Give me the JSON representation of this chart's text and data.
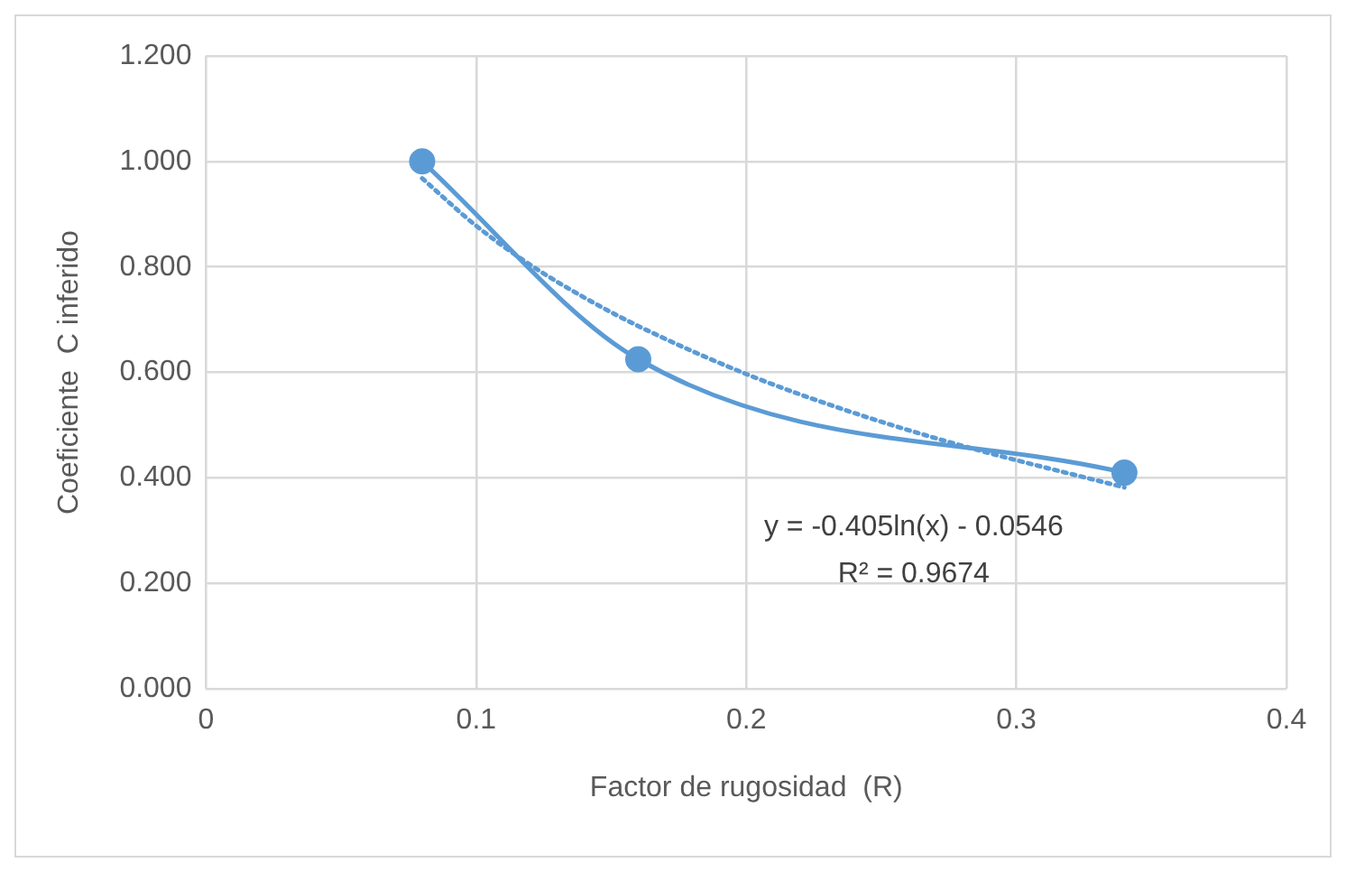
{
  "chart_data": {
    "type": "scatter",
    "xlabel": "Factor de rugosidad  (R)",
    "ylabel": "Coeficiente  C inferido",
    "xlim": [
      0,
      0.4
    ],
    "xticks": [
      0,
      0.1,
      0.2,
      0.3,
      0.4
    ],
    "ylim": [
      0,
      1.2
    ],
    "yticks": [
      {
        "value": 0,
        "label": "0.000"
      },
      {
        "value": 0.2,
        "label": "0.200"
      },
      {
        "value": 0.4,
        "label": "0.400"
      },
      {
        "value": 0.6,
        "label": "0.600"
      },
      {
        "value": 0.8,
        "label": "0.800"
      },
      {
        "value": 1,
        "label": "1.000"
      },
      {
        "value": 1.2,
        "label": "1.200"
      }
    ],
    "grid": true,
    "legend": false,
    "series": [
      {
        "type": "line",
        "color": "#5b9bd5",
        "marker": "circle",
        "line_style": "solid",
        "x": [
          0.08,
          0.16,
          0.34
        ],
        "values": [
          1.0,
          0.625,
          0.41
        ]
      },
      {
        "type": "line",
        "color": "#5b9bd5",
        "marker": "none",
        "line_style": "dotted",
        "x": [
          0.08,
          0.1,
          0.12,
          0.14,
          0.16,
          0.2,
          0.24,
          0.28,
          0.34
        ],
        "values": [
          0.968,
          0.878,
          0.804,
          0.742,
          0.688,
          0.597,
          0.523,
          0.461,
          0.382
        ]
      }
    ],
    "annotations": [
      "y = -0.405ln(x) - 0.0546",
      "R² = 0.9674"
    ]
  }
}
